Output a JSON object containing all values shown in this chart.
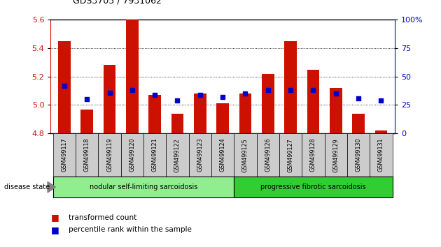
{
  "title": "GDS3705 / 7931062",
  "samples": [
    "GSM499117",
    "GSM499118",
    "GSM499119",
    "GSM499120",
    "GSM499121",
    "GSM499122",
    "GSM499123",
    "GSM499124",
    "GSM499125",
    "GSM499126",
    "GSM499127",
    "GSM499128",
    "GSM499129",
    "GSM499130",
    "GSM499131"
  ],
  "bar_values": [
    5.45,
    4.97,
    5.28,
    5.6,
    5.07,
    4.94,
    5.08,
    5.01,
    5.08,
    5.22,
    5.45,
    5.25,
    5.12,
    4.94,
    4.82
  ],
  "percentile_values": [
    42,
    30,
    36,
    38,
    34,
    29,
    34,
    32,
    35,
    38,
    38,
    38,
    35,
    31,
    29
  ],
  "ymin": 4.8,
  "ymax": 5.6,
  "percentile_min": 0,
  "percentile_max": 100,
  "bar_color": "#cc1100",
  "dot_color": "#0000cc",
  "group1_label": "nodular self-limiting sarcoidosis",
  "group2_label": "progressive fibrotic sarcoidosis",
  "group1_count": 8,
  "group2_count": 7,
  "legend1": "transformed count",
  "legend2": "percentile rank within the sample",
  "disease_state_label": "disease state",
  "group1_color": "#90ee90",
  "group2_color": "#32cd32",
  "group_bar_color": "#cccccc",
  "yticks_left": [
    4.8,
    5.0,
    5.2,
    5.4,
    5.6
  ],
  "yticks_right": [
    0,
    25,
    50,
    75,
    100
  ],
  "grid_lines": [
    5.0,
    5.2,
    5.4
  ]
}
